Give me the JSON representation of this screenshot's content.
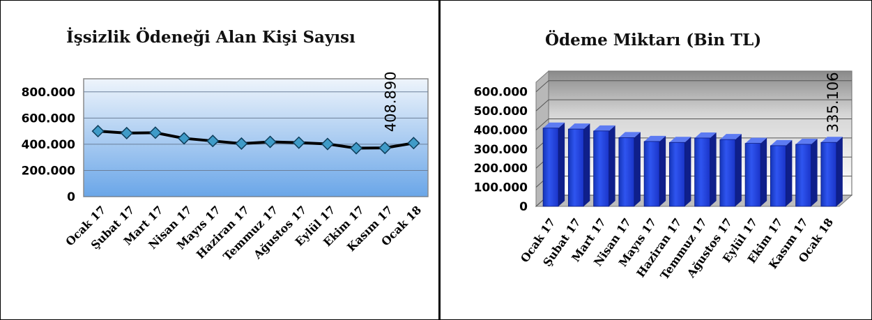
{
  "chart_data": [
    {
      "type": "line",
      "title": "İşsizlik Ödeneği Alan Kişi Sayısı",
      "categories": [
        "Ocak 17",
        "Şubat 17",
        "Mart 17",
        "Nisan 17",
        "Mayıs 17",
        "Haziran 17",
        "Temmuz 17",
        "Ağustos 17",
        "Eylül 17",
        "Ekim 17",
        "Kasım 17",
        "Ocak 18"
      ],
      "values": [
        500000,
        485000,
        488000,
        445000,
        425000,
        405000,
        418000,
        412000,
        402000,
        370000,
        372000,
        408890
      ],
      "yticks": [
        "800.000",
        "600.000",
        "400.000",
        "200.000",
        "0"
      ],
      "ylim": [
        0,
        900000
      ],
      "data_label": "408.890",
      "grid": true,
      "colors": {
        "line": "#000000",
        "marker": "#3f9bc8",
        "bg_top": "#eef4fb",
        "bg_bottom": "#6aa6e8"
      }
    },
    {
      "type": "bar",
      "title": "Ödeme Miktarı (Bin TL)",
      "categories": [
        "Ocak 17",
        "Şubat 17",
        "Mart 17",
        "Nisan 17",
        "Mayıs 17",
        "Haziran 17",
        "Temmuz 17",
        "Ağustos 17",
        "Eylül 17",
        "Ekim 17",
        "Kasım 17",
        "Ocak 18"
      ],
      "values": [
        410000,
        405000,
        395000,
        360000,
        340000,
        335000,
        358000,
        350000,
        330000,
        318000,
        325000,
        335106
      ],
      "yticks": [
        "600.000",
        "500.000",
        "400.000",
        "300.000",
        "200.000",
        "100.000",
        "0"
      ],
      "ylim": [
        0,
        650000
      ],
      "data_label": "335.106",
      "grid": true,
      "colors": {
        "bar": "#1f3fd8",
        "bar_side": "#0f1f8a",
        "bar_top": "#5d7bf2",
        "bg_top": "#8a8a8a",
        "bg_bottom": "#ffffff"
      }
    }
  ]
}
